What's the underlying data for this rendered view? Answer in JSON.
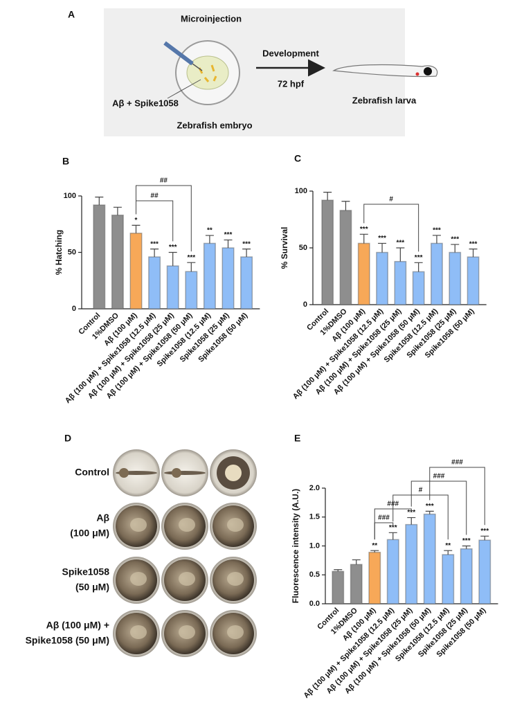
{
  "panel_a": {
    "label": "A",
    "injection": "Microinjection",
    "mixture": "Aβ + Spike1058",
    "embryo": "Zebrafish embryo",
    "development": "Development",
    "time": "72 hpf",
    "larva": "Zebrafish larva"
  },
  "chart_data": [
    {
      "type": "bar",
      "panel": "B",
      "ylabel": "% Hatching",
      "categories": [
        "Control",
        "1%DMSO",
        "Aβ (100 μM)",
        "Aβ (100 μM) + Spike1058 (12.5 μM)",
        "Aβ (100 μM) + Spike1058 (25 μM)",
        "Aβ (100 μM) + Spike1058 (50 μM)",
        "Spike1058 (12.5 μM)",
        "Spike1058 (25 μM)",
        "Spike1058 (50 μM)"
      ],
      "values": [
        92,
        83,
        67,
        46,
        38,
        33,
        58,
        54,
        46
      ],
      "errors": [
        7,
        7,
        7,
        7,
        12,
        8,
        7,
        7,
        7
      ],
      "colors": [
        "#8e8e8e",
        "#8e8e8e",
        "#f7a858",
        "#8fbdf7",
        "#8fbdf7",
        "#8fbdf7",
        "#8fbdf7",
        "#8fbdf7",
        "#8fbdf7"
      ],
      "significance": [
        null,
        null,
        "*",
        "***",
        "***",
        "***",
        "**",
        "***",
        "***"
      ],
      "brackets": [
        {
          "from": 2,
          "to": 4,
          "label": "##"
        },
        {
          "from": 2,
          "to": 5,
          "label": "##"
        }
      ],
      "ylim": [
        0,
        100
      ],
      "yticks": [
        0,
        50,
        100
      ]
    },
    {
      "type": "bar",
      "panel": "C",
      "ylabel": "% Survival",
      "categories": [
        "Control",
        "1%DMSO",
        "Aβ (100 μM)",
        "Aβ (100 μM) + Spike1058 (12.5 μM)",
        "Aβ (100 μM) + Spike1058 (25 μM)",
        "Aβ (100 μM) + Spike1058 (50 μM)",
        "Spike1058 (12.5 μM)",
        "Spike1058 (25 μM)",
        "Spike1058 (50 μM)"
      ],
      "values": [
        92,
        83,
        54,
        46,
        38,
        29,
        54,
        46,
        42
      ],
      "errors": [
        7,
        8,
        8,
        8,
        12,
        8,
        7,
        7,
        7
      ],
      "colors": [
        "#8e8e8e",
        "#8e8e8e",
        "#f7a858",
        "#8fbdf7",
        "#8fbdf7",
        "#8fbdf7",
        "#8fbdf7",
        "#8fbdf7",
        "#8fbdf7"
      ],
      "significance": [
        null,
        null,
        "***",
        "***",
        "***",
        "***",
        "***",
        "***",
        "***"
      ],
      "brackets": [
        {
          "from": 2,
          "to": 5,
          "label": "#"
        }
      ],
      "ylim": [
        0,
        100
      ],
      "yticks": [
        0,
        50,
        100
      ]
    },
    {
      "type": "bar",
      "panel": "E",
      "ylabel": "Fluorescence intensity (A.U.)",
      "categories": [
        "Control",
        "1%DMSO",
        "Aβ (100 μM)",
        "Aβ (100 μM) + Spike1058 (12.5 μM)",
        "Aβ (100 μM) + Spike1058 (25 μM)",
        "Aβ (100 μM) + Spike1058 (50 μM)",
        "Spike1058 (12.5 μM)",
        "Spike1058 (25 μM)",
        "Spike1058 (50 μM)"
      ],
      "values": [
        0.56,
        0.68,
        0.89,
        1.11,
        1.37,
        1.55,
        0.85,
        0.95,
        1.1
      ],
      "errors": [
        0.03,
        0.08,
        0.03,
        0.12,
        0.12,
        0.05,
        0.07,
        0.05,
        0.07
      ],
      "colors": [
        "#8e8e8e",
        "#8e8e8e",
        "#f7a858",
        "#8fbdf7",
        "#8fbdf7",
        "#8fbdf7",
        "#8fbdf7",
        "#8fbdf7",
        "#8fbdf7"
      ],
      "significance": [
        null,
        null,
        "**",
        "***",
        "***",
        "***",
        "**",
        "***",
        "***"
      ],
      "brackets": [
        {
          "from": 2,
          "to": 3,
          "label": "###"
        },
        {
          "from": 2,
          "to": 4,
          "label": "###"
        },
        {
          "from": 3,
          "to": 6,
          "label": "#"
        },
        {
          "from": 4,
          "to": 7,
          "label": "###"
        },
        {
          "from": 5,
          "to": 8,
          "label": "###"
        }
      ],
      "ylim": [
        0,
        2
      ],
      "yticks": [
        {
          "value": 0,
          "label": "0.0"
        },
        0.5,
        {
          "value": 1,
          "label": "1.0"
        },
        1.5,
        {
          "value": 2,
          "label": "2.0"
        }
      ]
    }
  ],
  "panel_d": {
    "label": "D",
    "rows": [
      [
        "Control"
      ],
      [
        "Aβ",
        "(100 μM)"
      ],
      [
        "Spike1058",
        "(50 μM)"
      ],
      [
        "Aβ (100 μM) +",
        "Spike1058 (50 μM)"
      ]
    ]
  }
}
